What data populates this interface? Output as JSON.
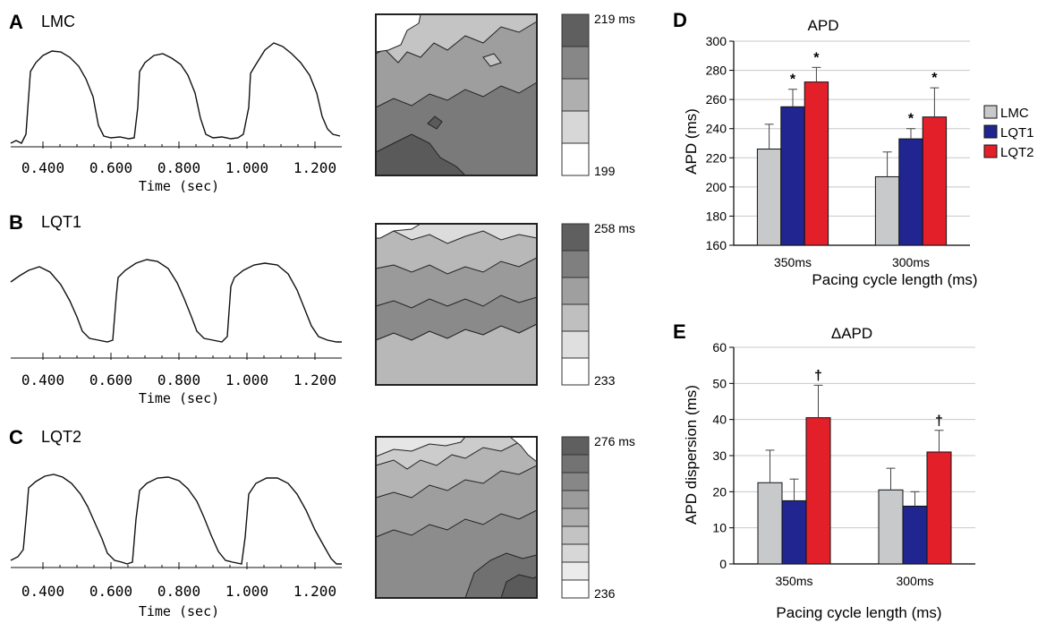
{
  "rows": [
    {
      "letter": "A",
      "label": "LMC",
      "ticks": [
        "0.400",
        "0.600",
        "0.800",
        "1.000",
        "1.200"
      ],
      "xlabel": "Time (sec)",
      "scale_max": "219 ms",
      "scale_min": "199",
      "scale_levels": 5
    },
    {
      "letter": "B",
      "label": "LQT1",
      "ticks": [
        "0.400",
        "0.600",
        "0.800",
        "1.000",
        "1.200"
      ],
      "xlabel": "Time (sec)",
      "scale_max": "258 ms",
      "scale_min": "233",
      "scale_levels": 6
    },
    {
      "letter": "C",
      "label": "LQT2",
      "ticks": [
        "0.400",
        "0.600",
        "0.800",
        "1.000",
        "1.200"
      ],
      "xlabel": "Time (sec)",
      "scale_max": "276 ms",
      "scale_min": "236",
      "scale_levels": 9
    }
  ],
  "colors": {
    "LMC": "#c7c9ca",
    "LQT1": "#202590",
    "LQT2": "#e3202a"
  },
  "chart_data": [
    {
      "panel": "D",
      "type": "bar",
      "title": "APD",
      "xlabel": "Pacing cycle length (ms)",
      "ylabel": "APD (ms)",
      "categories": [
        "350ms",
        "300ms"
      ],
      "ylim": [
        160,
        300
      ],
      "yticks": [
        160,
        180,
        200,
        220,
        240,
        260,
        280,
        300
      ],
      "grid": true,
      "legend": "right",
      "series": [
        {
          "name": "LMC",
          "values": [
            226,
            207
          ],
          "errors": [
            17,
            17
          ],
          "marks": [
            "",
            ""
          ]
        },
        {
          "name": "LQT1",
          "values": [
            255,
            233
          ],
          "errors": [
            12,
            7
          ],
          "marks": [
            "*",
            "*"
          ]
        },
        {
          "name": "LQT2",
          "values": [
            272,
            248
          ],
          "errors": [
            10,
            20
          ],
          "marks": [
            "*",
            "*"
          ]
        }
      ]
    },
    {
      "panel": "E",
      "type": "bar",
      "title": "ΔAPD",
      "xlabel": "Pacing cycle length (ms)",
      "ylabel": "APD dispersion (ms)",
      "categories": [
        "350ms",
        "300ms"
      ],
      "ylim": [
        0,
        60
      ],
      "yticks": [
        0,
        10,
        20,
        30,
        40,
        50,
        60
      ],
      "grid": true,
      "series": [
        {
          "name": "LMC",
          "values": [
            22.5,
            20.5
          ],
          "errors": [
            9,
            6
          ],
          "marks": [
            "",
            ""
          ]
        },
        {
          "name": "LQT1",
          "values": [
            17.5,
            16
          ],
          "errors": [
            6,
            4
          ],
          "marks": [
            "",
            ""
          ]
        },
        {
          "name": "LQT2",
          "values": [
            40.5,
            31
          ],
          "errors": [
            9,
            6
          ],
          "marks": [
            "†",
            "†"
          ]
        }
      ]
    }
  ]
}
